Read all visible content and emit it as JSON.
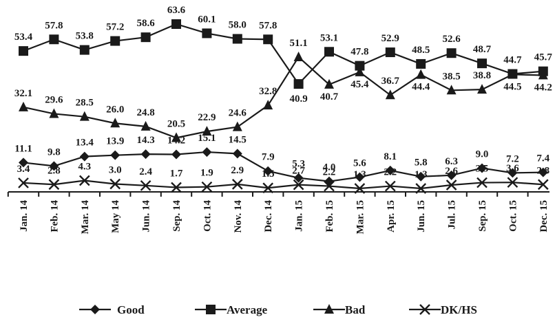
{
  "chart_data": {
    "type": "line",
    "title": "",
    "xlabel": "",
    "ylabel": "",
    "categories": [
      "Jan. 14",
      "Feb. 14",
      "Mar. 14",
      "May 14",
      "Jun. 14",
      "Sep. 14",
      "Oct. 14",
      "Nov. 14",
      "Dec. 14",
      "Jan. 15",
      "Feb. 15",
      "Mar. 15",
      "Apr. 15",
      "Jun. 15",
      "Jul. 15",
      "Sep. 15",
      "Oct. 15",
      "Dec. 15"
    ],
    "ylim": [
      0,
      65
    ],
    "grid": false,
    "legend_position": "bottom",
    "series": [
      {
        "name": "Good",
        "marker": "diamond",
        "color": "#1a1a1a",
        "values": [
          11.1,
          9.8,
          13.4,
          13.9,
          14.3,
          14.2,
          15.1,
          14.5,
          7.9,
          5.3,
          4.0,
          5.6,
          8.1,
          5.8,
          6.3,
          9.0,
          7.2,
          7.4
        ],
        "labels": [
          "11.1",
          "9.8",
          "13.4",
          "13.9",
          "14.3",
          "14.2",
          "15.1",
          "14.5",
          "7.9",
          "5.3",
          "4.0",
          "5.6",
          "8.1",
          "5.8",
          "6.3",
          "9.0",
          "7.2",
          "7.4"
        ]
      },
      {
        "name": "Average",
        "marker": "square",
        "color": "#1a1a1a",
        "values": [
          53.4,
          57.8,
          53.8,
          57.2,
          58.6,
          63.6,
          60.1,
          58.0,
          57.8,
          40.9,
          53.1,
          47.8,
          52.9,
          48.5,
          52.6,
          48.7,
          44.7,
          45.7
        ],
        "labels": [
          "53.4",
          "57.8",
          "53.8",
          "57.2",
          "58.6",
          "63.6",
          "60.1",
          "58.0",
          "57.8",
          "40.9",
          "53.1",
          "47.8",
          "52.9",
          "48.5",
          "52.6",
          "48.7",
          "44.7",
          "45.7"
        ]
      },
      {
        "name": "Bad",
        "marker": "triangle",
        "color": "#1a1a1a",
        "values": [
          32.1,
          29.6,
          28.5,
          26.0,
          24.8,
          20.5,
          22.9,
          24.6,
          32.8,
          51.1,
          40.7,
          45.4,
          36.7,
          44.4,
          38.5,
          38.8,
          44.5,
          44.2
        ],
        "labels": [
          "32.1",
          "29.6",
          "28.5",
          "26.0",
          "24.8",
          "20.5",
          "22.9",
          "24.6",
          "32.8",
          "51.1",
          "40.7",
          "45.4",
          "36.7",
          "44.4",
          "38.5",
          "38.8",
          "44.5",
          "44.2"
        ]
      },
      {
        "name": "DK/HS",
        "marker": "x",
        "color": "#1a1a1a",
        "values": [
          3.4,
          2.8,
          4.3,
          3.0,
          2.4,
          1.7,
          1.9,
          2.9,
          1.5,
          2.7,
          2.2,
          1.3,
          2.2,
          1.3,
          2.6,
          3.5,
          3.6,
          2.8
        ],
        "labels": [
          "3.4",
          "2.8",
          "4.3",
          "3.0",
          "2.4",
          "1.7",
          "1.9",
          "2.9",
          "1.5",
          "2.7",
          "2.2",
          "1.3",
          "2.2",
          "1.3",
          "2.6",
          "3.5",
          "3.6",
          "2.8"
        ]
      }
    ]
  }
}
